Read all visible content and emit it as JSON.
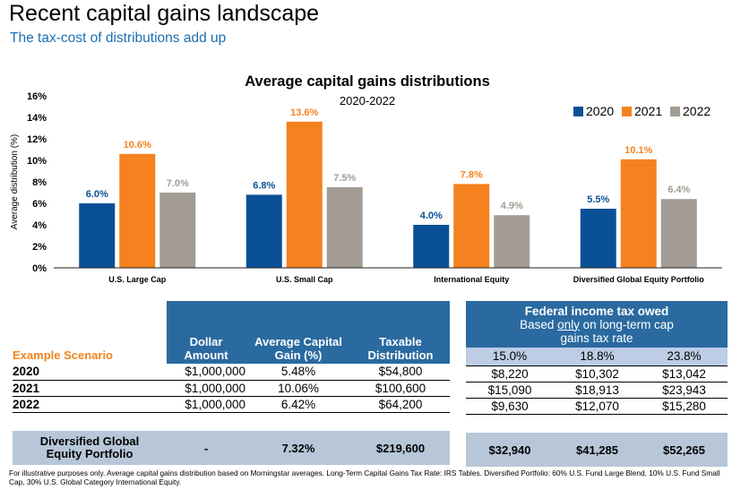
{
  "page": {
    "title": "Recent capital gains landscape",
    "subtitle": "The tax-cost of distributions add up"
  },
  "chart_data": {
    "type": "bar",
    "title": "Average capital gains distributions",
    "subtitle": "2020-2022",
    "ylabel": "Average distribution (%)",
    "xlabel": "",
    "ylim": [
      0,
      16
    ],
    "yticks": [
      "0%",
      "2%",
      "4%",
      "6%",
      "8%",
      "10%",
      "12%",
      "14%",
      "16%"
    ],
    "grid": false,
    "legend_position": "top-right",
    "categories": [
      "U.S. Large Cap",
      "U.S. Small Cap",
      "International Equity",
      "Diversified Global Equity Portfolio"
    ],
    "series": [
      {
        "name": "2020",
        "color": "#0a5096",
        "values": [
          6.0,
          6.8,
          4.0,
          5.5
        ],
        "labels": [
          "6.0%",
          "6.8%",
          "4.0%",
          "5.5%"
        ]
      },
      {
        "name": "2021",
        "color": "#f5821f",
        "values": [
          10.6,
          13.6,
          7.8,
          10.1
        ],
        "labels": [
          "10.6%",
          "13.6%",
          "7.8%",
          "10.1%"
        ]
      },
      {
        "name": "2022",
        "color": "#a29c94",
        "values": [
          7.0,
          7.5,
          4.9,
          6.4
        ],
        "labels": [
          "7.0%",
          "7.5%",
          "4.9%",
          "6.4%"
        ]
      }
    ]
  },
  "scenario_table": {
    "scenario_label": "Example Scenario",
    "headers": {
      "dollar": "Dollar Amount",
      "avg_gain": "Average Capital Gain (%)",
      "taxable": "Taxable Distribution"
    },
    "rows": [
      {
        "year": "2020",
        "dollar": "$1,000,000",
        "avg_gain": "5.48%",
        "taxable": "$54,800"
      },
      {
        "year": "2021",
        "dollar": "$1,000,000",
        "avg_gain": "10.06%",
        "taxable": "$100,600"
      },
      {
        "year": "2022",
        "dollar": "$1,000,000",
        "avg_gain": "6.42%",
        "taxable": "$64,200"
      }
    ],
    "total": {
      "label": "Diversified Global Equity Portfolio",
      "dollar": "-",
      "avg_gain": "7.32%",
      "taxable": "$219,600"
    }
  },
  "tax_table": {
    "title": "Federal income tax owed",
    "subtitle_before": "Based ",
    "subtitle_emph": "only",
    "subtitle_after": " on long-term cap gains tax rate",
    "rates": [
      "15.0%",
      "18.8%",
      "23.8%"
    ],
    "rows": [
      [
        "$8,220",
        "$10,302",
        "$13,042"
      ],
      [
        "$15,090",
        "$18,913",
        "$23,943"
      ],
      [
        "$9,630",
        "$12,070",
        "$15,280"
      ]
    ],
    "total": [
      "$32,940",
      "$41,285",
      "$52,265"
    ]
  },
  "footnote": "For illustrative purposes only. Average capital gains distribution based on Morningstar averages. Long-Term Capital Gains Tax Rate: IRS Tables. Diversified Portfolio: 60% U.S. Fund Large Blend, 10% U.S. Fund Small Cap, 30% U.S. Global Category International Equity."
}
